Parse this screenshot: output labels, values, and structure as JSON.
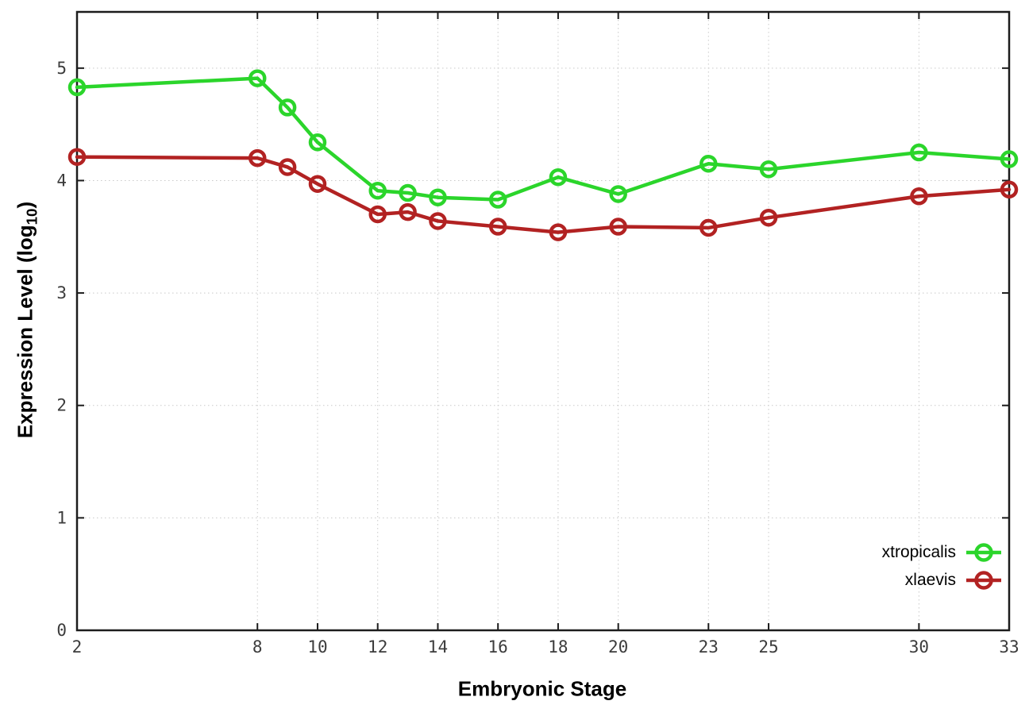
{
  "chart_data": {
    "type": "line",
    "x": [
      2,
      8,
      9,
      10,
      12,
      13,
      14,
      16,
      18,
      20,
      23,
      25,
      30,
      33
    ],
    "series": [
      {
        "name": "xtropicalis",
        "color": "#2bd52b",
        "values": [
          4.83,
          4.91,
          4.65,
          4.34,
          3.91,
          3.89,
          3.85,
          3.83,
          4.03,
          3.88,
          4.15,
          4.1,
          4.25,
          4.19
        ]
      },
      {
        "name": "xlaevis",
        "color": "#b22222",
        "values": [
          4.21,
          4.2,
          4.12,
          3.97,
          3.7,
          3.72,
          3.64,
          3.59,
          3.54,
          3.59,
          3.58,
          3.67,
          3.86,
          3.92
        ]
      }
    ],
    "xlabel": "Embryonic Stage",
    "ylabel": "Expression Level (log10)",
    "ylabel_parts": {
      "prefix": "Expression Level (log",
      "sub": "10",
      "suffix": ")"
    },
    "xticks": [
      2,
      8,
      10,
      12,
      14,
      16,
      18,
      20,
      23,
      25,
      30,
      33
    ],
    "yticks": [
      0,
      1,
      2,
      3,
      4,
      5
    ],
    "xlim": [
      2,
      33
    ],
    "ylim": [
      0,
      5.5
    ],
    "grid": true,
    "legend_position": "inside-bottom-right",
    "marker": "open-circle"
  },
  "colors": {
    "background": "#ffffff",
    "grid": "#c9c9c9",
    "axis": "#1c1c1c",
    "tick_label": "#3c3c3c"
  }
}
